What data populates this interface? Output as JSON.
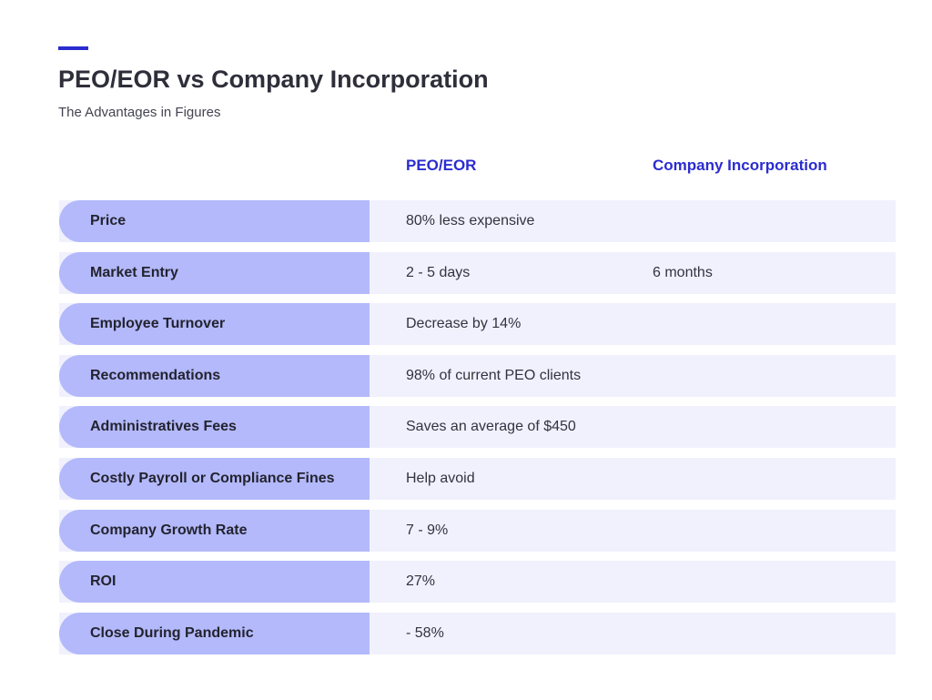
{
  "header": {
    "title": "PEO/EOR vs Company Incorporation",
    "subtitle": "The Advantages in Figures"
  },
  "table": {
    "columns": [
      "PEO/EOR",
      "Company Incorporation"
    ],
    "rows": [
      {
        "label": "Price",
        "peo": "80% less expensive",
        "inc": ""
      },
      {
        "label": "Market Entry",
        "peo": "2 - 5 days",
        "inc": "6 months"
      },
      {
        "label": "Employee Turnover",
        "peo": "Decrease by 14%",
        "inc": ""
      },
      {
        "label": "Recommendations",
        "peo": "98% of current PEO clients",
        "inc": ""
      },
      {
        "label": "Administratives Fees",
        "peo": "Saves an average of $450",
        "inc": ""
      },
      {
        "label": "Costly Payroll or Compliance Fines",
        "peo": "Help avoid",
        "inc": ""
      },
      {
        "label": "Company Growth Rate",
        "peo": "7 - 9%",
        "inc": ""
      },
      {
        "label": "ROI",
        "peo": "27%",
        "inc": ""
      },
      {
        "label": "Close During Pandemic",
        "peo": "- 58%",
        "inc": ""
      }
    ]
  },
  "colors": {
    "accent": "#2b2ccf",
    "label_fill": "#b3b9fa",
    "row_fill": "#f0f1fd"
  }
}
